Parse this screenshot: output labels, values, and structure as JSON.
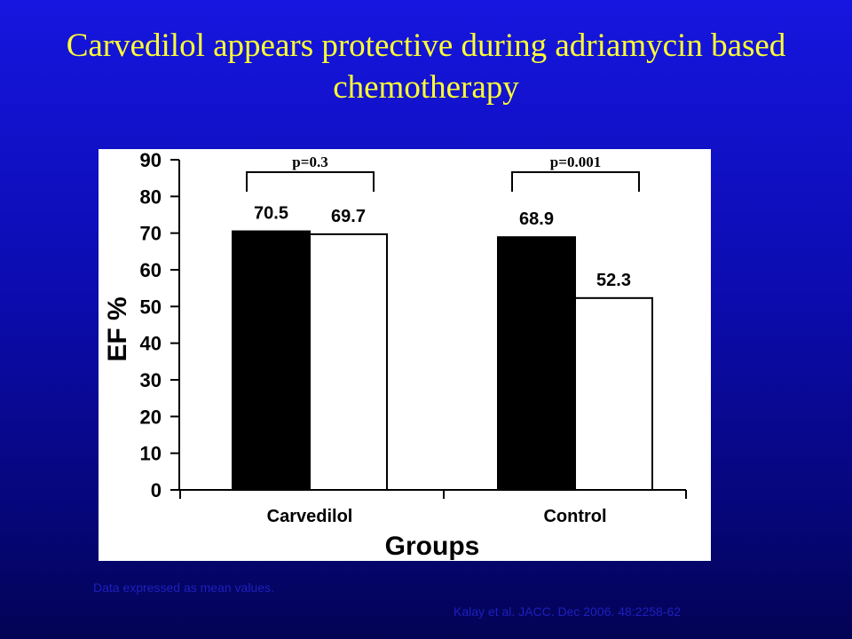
{
  "slide": {
    "title": "Carvedilol appears protective during adriamycin based chemotherapy",
    "footnote": "Data expressed as mean values.",
    "citation": "Kalay et al. JACC. Dec 2006. 48:2258-62"
  },
  "colors": {
    "title": "#ffff33",
    "background_top": "#1616e0",
    "background_bottom": "#030355",
    "bar_series_1": "#000000",
    "bar_series_2": "#ffffff"
  },
  "chart_data": {
    "type": "bar",
    "categories": [
      "Carvedilol",
      "Control"
    ],
    "series": [
      {
        "values": [
          70.5,
          68.9
        ]
      },
      {
        "values": [
          69.7,
          52.3
        ]
      }
    ],
    "value_labels": [
      [
        "70.5",
        "68.9"
      ],
      [
        "69.7",
        "52.3"
      ]
    ],
    "title": "",
    "xlabel": "Groups",
    "ylabel": "EF %",
    "ylim": [
      0,
      90
    ],
    "yticks": [
      0,
      10,
      20,
      30,
      40,
      50,
      60,
      70,
      80,
      90
    ],
    "annotations": [
      {
        "category": "Carvedilol",
        "text": "p=0.3"
      },
      {
        "category": "Control",
        "text": "p=0.001"
      }
    ],
    "grid": false,
    "legend": "none"
  }
}
